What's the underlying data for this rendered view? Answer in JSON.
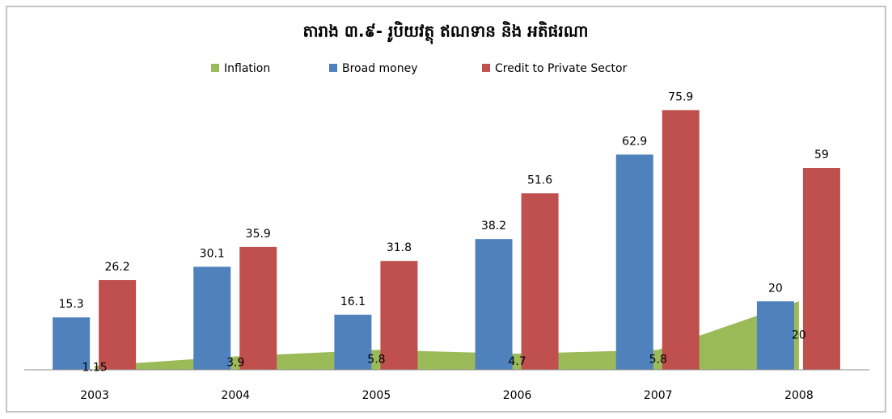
{
  "chart_data": {
    "type": "bar",
    "title": "តារាង ៣.៩- រូបិយវត្ថុ ឥណទាន និង អតិផរណា",
    "categories": [
      "2003",
      "2004",
      "2005",
      "2006",
      "2007",
      "2008"
    ],
    "series": [
      {
        "name": "Inflation",
        "color": "#9bbb59",
        "type": "area",
        "values": [
          1.15,
          3.9,
          5.8,
          4.7,
          5.8,
          20
        ]
      },
      {
        "name": "Broad money",
        "color": "#4f81bd",
        "values": [
          15.3,
          30.1,
          16.1,
          38.2,
          62.9,
          20
        ]
      },
      {
        "name": "Credit to Private Sector",
        "color": "#c0504d",
        "values": [
          26.2,
          35.9,
          31.8,
          51.6,
          75.9,
          59
        ]
      }
    ],
    "ylim": [
      0,
      80
    ],
    "legend": "top"
  }
}
